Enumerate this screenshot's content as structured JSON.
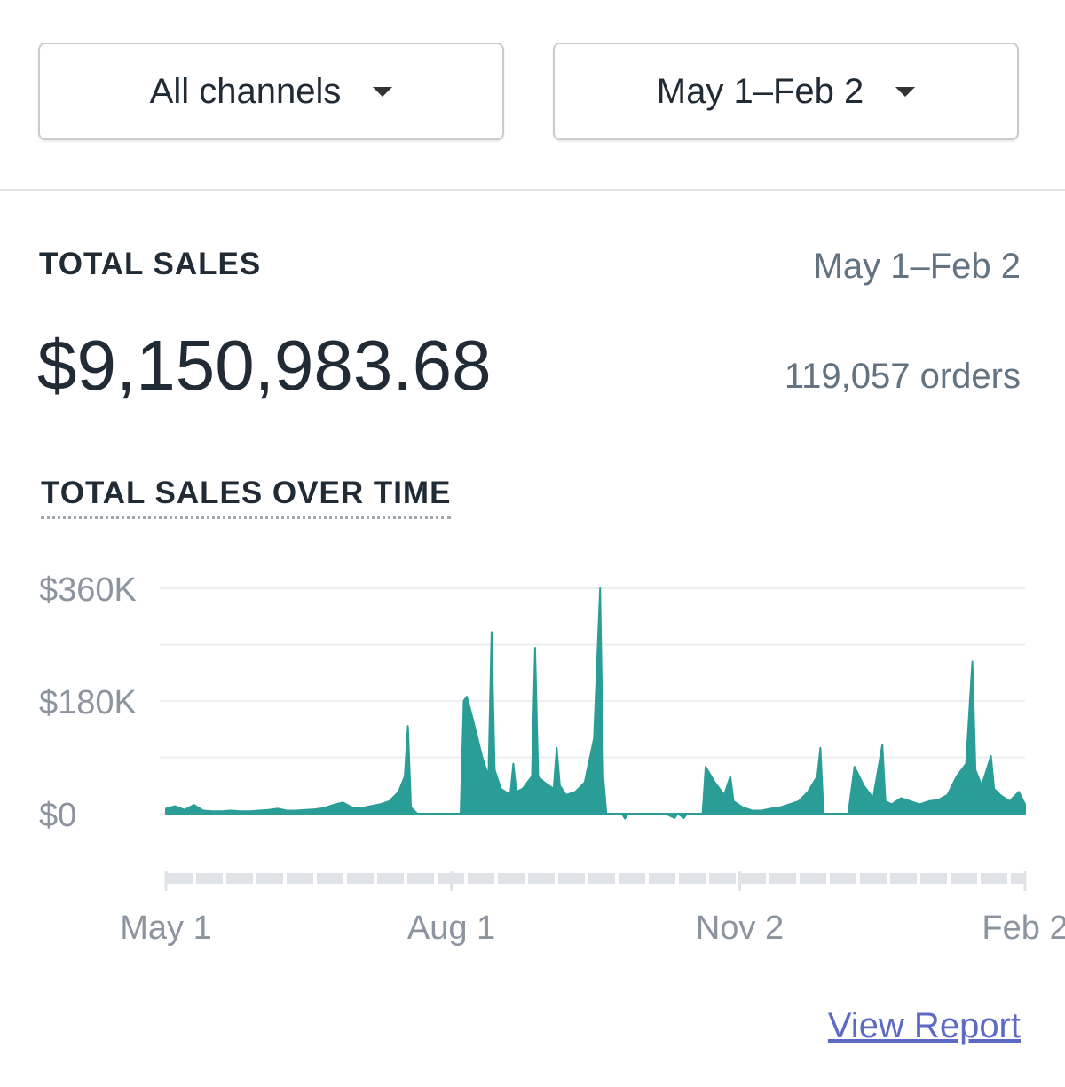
{
  "filters": {
    "channel": "All channels",
    "date_range": "May 1–Feb 2"
  },
  "summary": {
    "title": "TOTAL SALES",
    "date_range": "May 1–Feb 2",
    "total": "$9,150,983.68",
    "orders": "119,057 orders"
  },
  "chart_data": {
    "type": "area",
    "title": "TOTAL SALES OVER TIME",
    "x": [
      0,
      3,
      6,
      9,
      12,
      15,
      18,
      21,
      24,
      27,
      30,
      33,
      36,
      39,
      42,
      45,
      48,
      51,
      54,
      57,
      60,
      63,
      66,
      69,
      72,
      75,
      77,
      78,
      79,
      81,
      84,
      87,
      90,
      93,
      95,
      96,
      97,
      99,
      102,
      104,
      105,
      106,
      108,
      111,
      112,
      113,
      115,
      118,
      119,
      120,
      122,
      125,
      126,
      127,
      129,
      132,
      135,
      138,
      140,
      141,
      142,
      144,
      147,
      148,
      149,
      152,
      155,
      158,
      161,
      164,
      165,
      167,
      168,
      170,
      173,
      174,
      177,
      180,
      182,
      183,
      186,
      189,
      192,
      195,
      198,
      201,
      204,
      207,
      210,
      211,
      212,
      214,
      217,
      220,
      222,
      225,
      228,
      231,
      232,
      234,
      237,
      240,
      243,
      246,
      249,
      252,
      255,
      258,
      260,
      261,
      263,
      266,
      267,
      269,
      272,
      275,
      277
    ],
    "values": [
      8000,
      12000,
      6000,
      14000,
      5000,
      4000,
      4000,
      5000,
      4000,
      4000,
      5000,
      6000,
      8000,
      5000,
      5000,
      6000,
      7000,
      9000,
      14000,
      18000,
      10000,
      9000,
      12000,
      15000,
      20000,
      35000,
      60000,
      140000,
      10000,
      0,
      0,
      0,
      0,
      0,
      0,
      180000,
      187000,
      150000,
      90000,
      60000,
      290000,
      70000,
      40000,
      30000,
      80000,
      35000,
      40000,
      60000,
      265000,
      60000,
      50000,
      40000,
      105000,
      45000,
      30000,
      35000,
      50000,
      120000,
      360000,
      60000,
      0,
      0,
      0,
      -8000,
      0,
      0,
      0,
      0,
      0,
      -7000,
      0,
      -7000,
      0,
      0,
      0,
      75000,
      50000,
      30000,
      60000,
      20000,
      10000,
      5000,
      5000,
      8000,
      10000,
      15000,
      20000,
      35000,
      60000,
      105000,
      0,
      0,
      0,
      0,
      75000,
      45000,
      25000,
      110000,
      20000,
      15000,
      25000,
      20000,
      15000,
      20000,
      22000,
      30000,
      60000,
      80000,
      243000,
      70000,
      45000,
      92000,
      40000,
      30000,
      20000,
      35000,
      15000
    ],
    "color": "#2a9d96",
    "xlim": [
      0,
      277
    ],
    "xticks": [
      {
        "value": 0,
        "label": "May 1"
      },
      {
        "value": 92,
        "label": "Aug 1"
      },
      {
        "value": 185,
        "label": "Nov 2"
      },
      {
        "value": 277,
        "label": "Feb 2"
      }
    ],
    "ylim": [
      0,
      360000
    ],
    "yticks": [
      {
        "value": 0,
        "label": "$0"
      },
      {
        "value": 180000,
        "label": "$180K"
      },
      {
        "value": 360000,
        "label": "$360K"
      }
    ],
    "y_minor_ticks": [
      90000,
      270000
    ],
    "grid": true
  },
  "link": "View Report"
}
